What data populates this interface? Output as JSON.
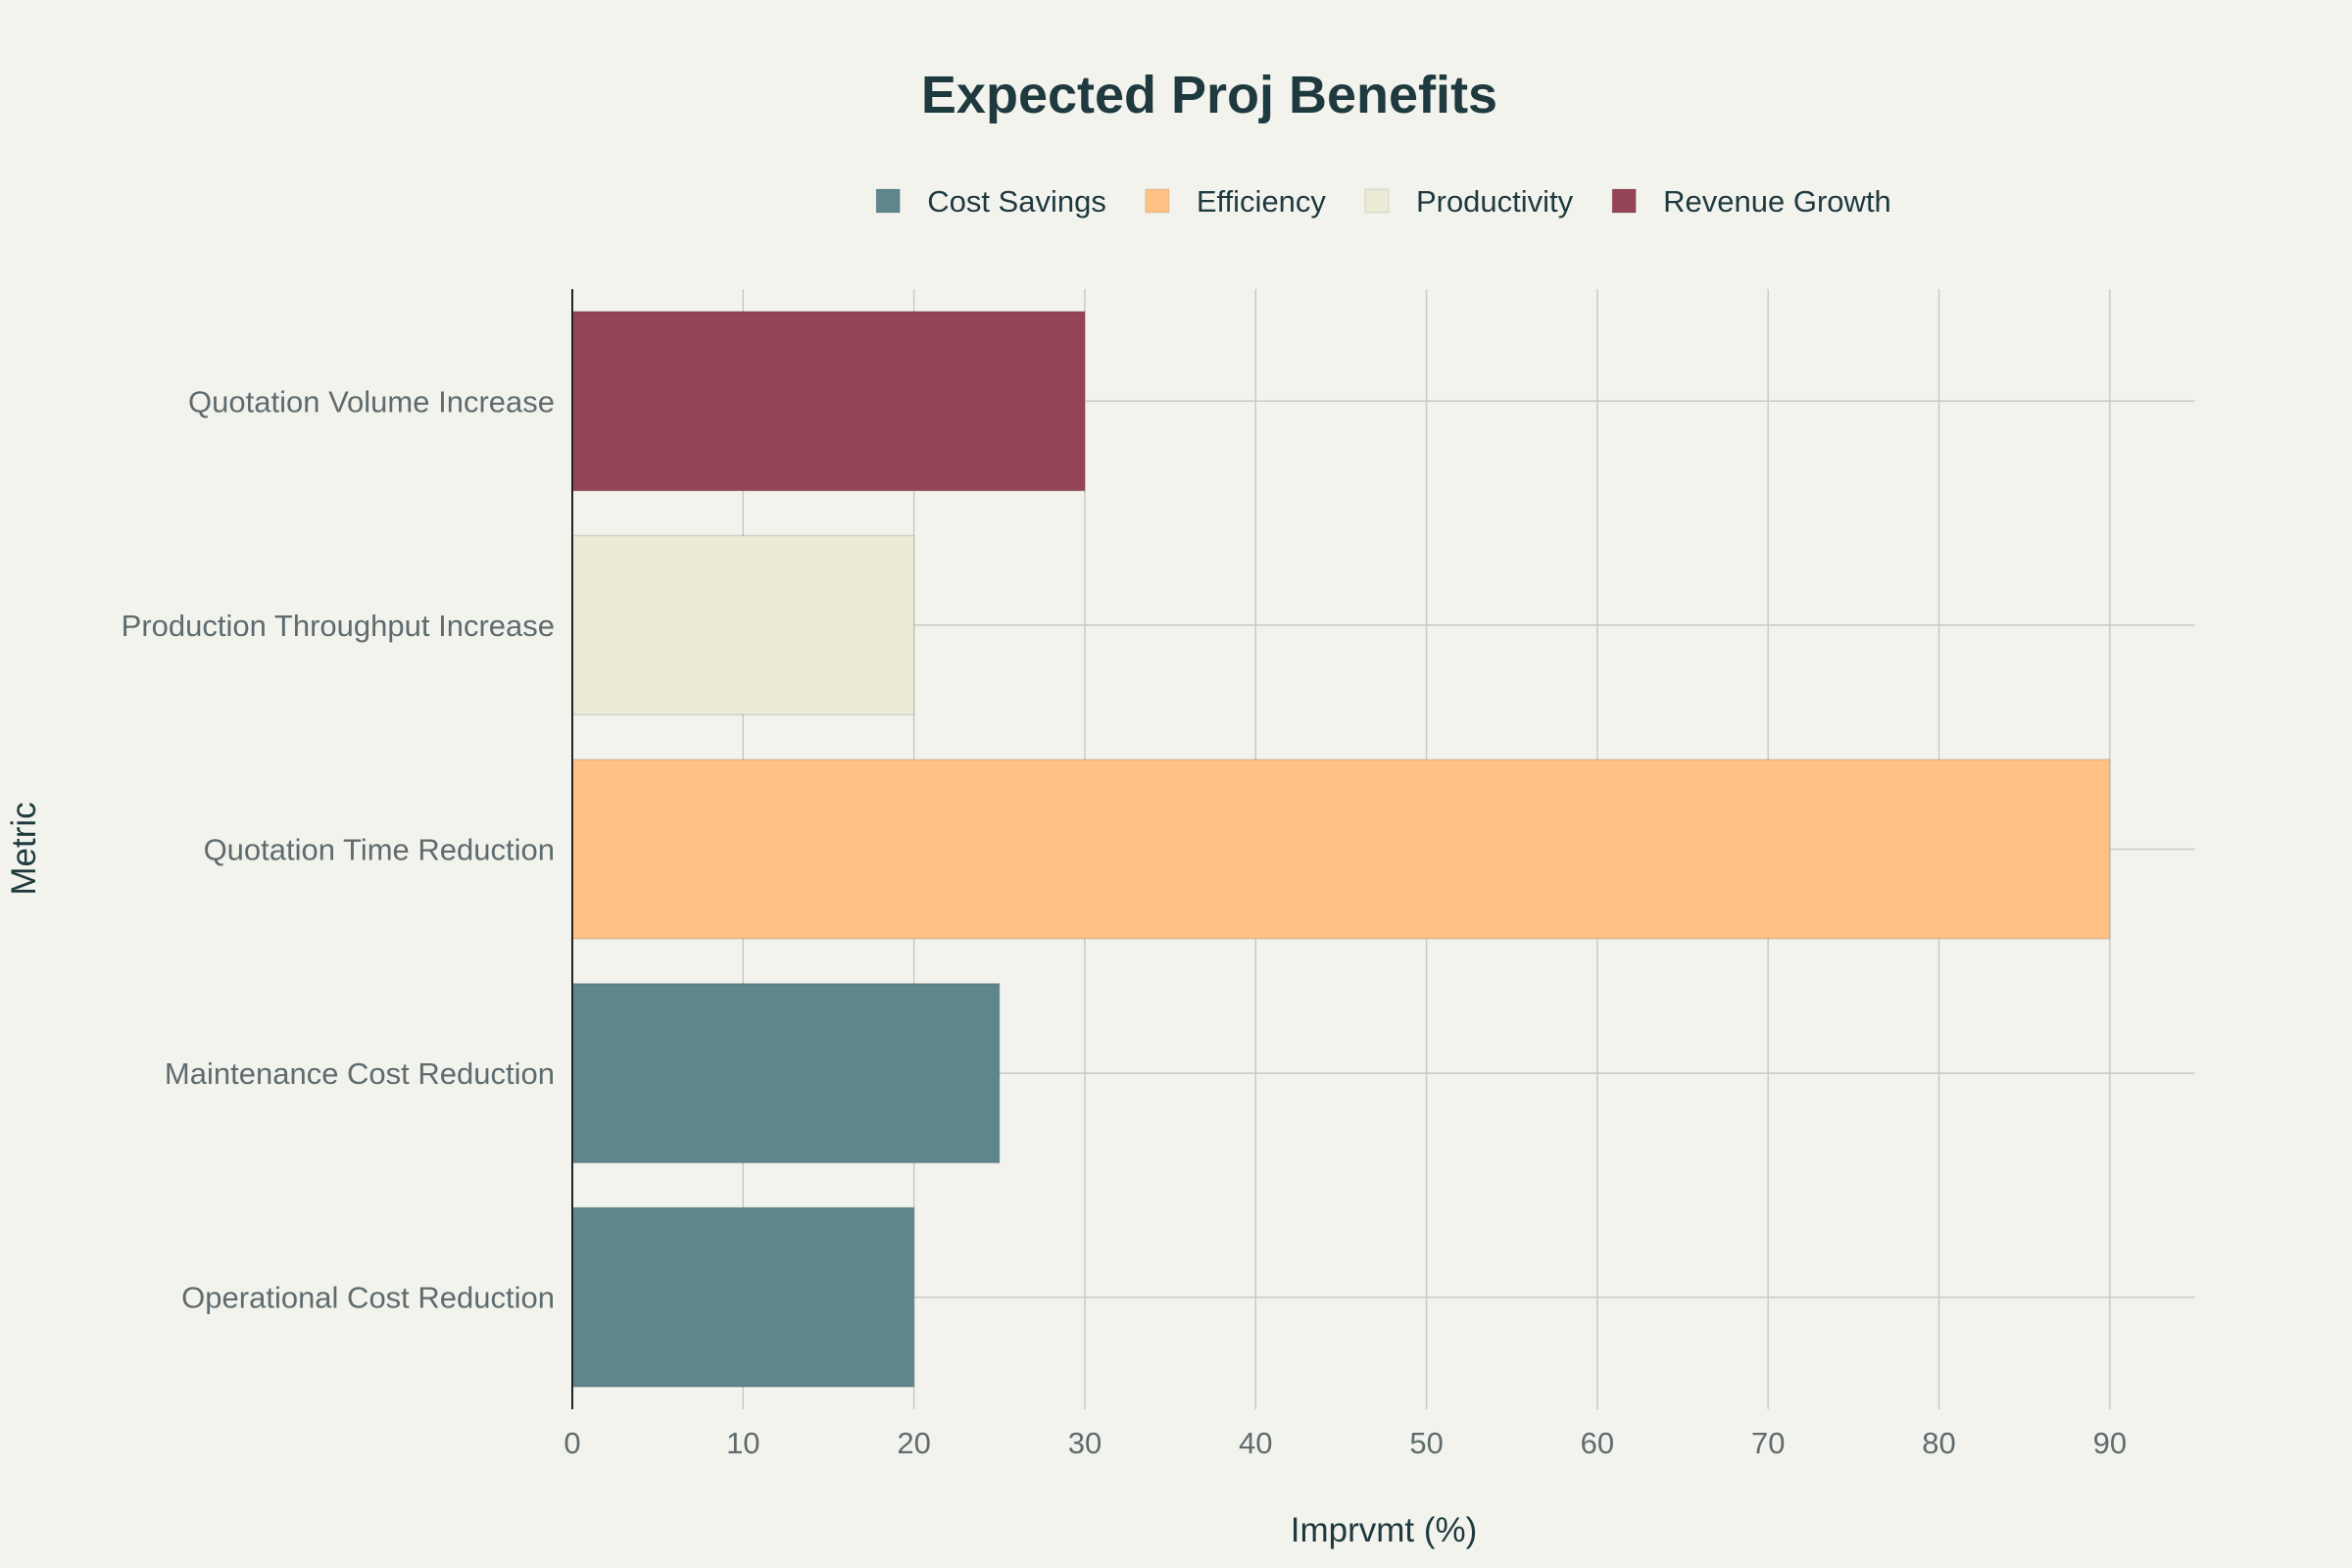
{
  "chart_data": {
    "type": "bar",
    "orientation": "horizontal",
    "title": "Expected Proj Benefits",
    "xlabel": "Imprvmt (%)",
    "ylabel": "Metric",
    "xlim": [
      0,
      95
    ],
    "xticks": [
      0,
      10,
      20,
      30,
      40,
      50,
      60,
      70,
      80,
      90
    ],
    "grid": true,
    "legend_position": "top",
    "categories": [
      "Quotation Volume Increase",
      "Production Throughput Increase",
      "Quotation Time Reduction",
      "Maintenance Cost Reduction",
      "Operational Cost Reduction"
    ],
    "values": [
      30,
      20,
      90,
      25,
      20
    ],
    "groups": [
      "Revenue Growth",
      "Productivity",
      "Efficiency",
      "Cost Savings",
      "Cost Savings"
    ],
    "legend": [
      {
        "name": "Cost Savings",
        "color": "#5e868d"
      },
      {
        "name": "Efficiency",
        "color": "#ffc185"
      },
      {
        "name": "Productivity",
        "color": "#ecebd5"
      },
      {
        "name": "Revenue Growth",
        "color": "#944454"
      }
    ]
  }
}
